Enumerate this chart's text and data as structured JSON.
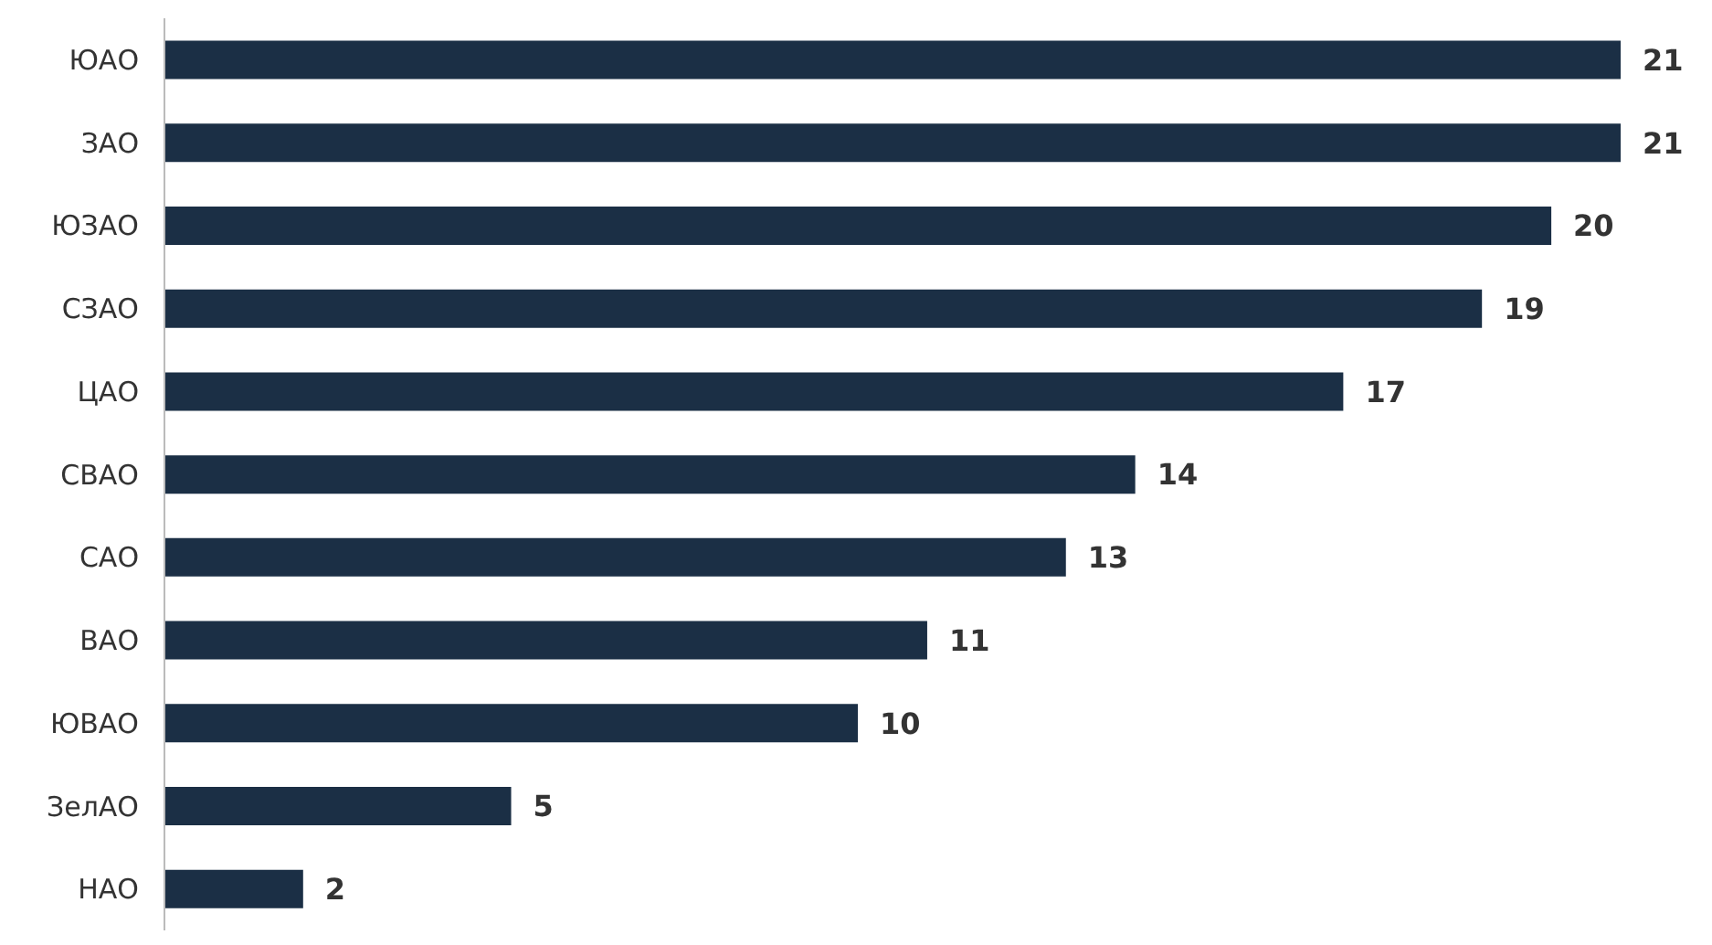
{
  "chart_data": {
    "type": "bar",
    "orientation": "horizontal",
    "categories": [
      "ЮАО",
      "ЗАО",
      "ЮЗАО",
      "СЗАО",
      "ЦАО",
      "СВАО",
      "САО",
      "ВАО",
      "ЮВАО",
      "ЗелАО",
      "НАО"
    ],
    "values": [
      21,
      21,
      20,
      19,
      17,
      14,
      13,
      11,
      10,
      5,
      2
    ],
    "color": "#1b2f45",
    "data_labels": true
  }
}
